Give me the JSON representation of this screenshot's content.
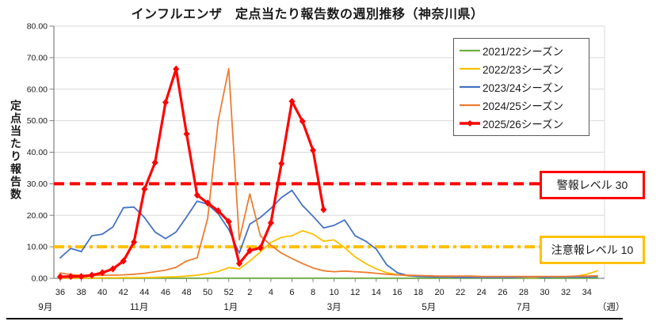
{
  "title": "インフルエンザ　定点当たり報告数の週別推移（神奈川県）",
  "y_axis": {
    "title": "定点当たり報告数",
    "tick_labels": [
      "0.00",
      "10.00",
      "20.00",
      "30.00",
      "40.00",
      "50.00",
      "60.00",
      "70.00",
      "80.00"
    ],
    "min": 0,
    "max": 80,
    "step": 10
  },
  "x_axis": {
    "tick_labels": [
      "36",
      "38",
      "40",
      "42",
      "44",
      "46",
      "48",
      "50",
      "52",
      "2",
      "4",
      "6",
      "8",
      "10",
      "12",
      "14",
      "16",
      "18",
      "20",
      "22",
      "24",
      "26",
      "28",
      "30",
      "32",
      "34"
    ],
    "month_labels": [
      {
        "text": "9月",
        "pos": -1.4
      },
      {
        "text": "11月",
        "pos": 7.5
      },
      {
        "text": "1月",
        "pos": 16.2
      },
      {
        "text": "3月",
        "pos": 26.0
      },
      {
        "text": "5月",
        "pos": 35.0
      },
      {
        "text": "7月",
        "pos": 44.0
      }
    ],
    "unit_label": {
      "text": "（週）",
      "pos": 52.3
    }
  },
  "thresholds": {
    "warning": {
      "label": "警報レベル 30",
      "value": 30,
      "color": "#FF0000"
    },
    "caution": {
      "label": "注意報レベル 10",
      "value": 10,
      "color": "#FFC000"
    }
  },
  "chart_data": {
    "type": "line",
    "title": "インフルエンザ　定点当たり報告数の週別推移（神奈川県）",
    "ylabel": "定点当たり報告数",
    "xlabel": "（週）",
    "ylim": [
      0,
      80
    ],
    "grid": "horizontal",
    "legend_position": "upper-right",
    "x_weeks": [
      "36",
      "37",
      "38",
      "39",
      "40",
      "41",
      "42",
      "43",
      "44",
      "45",
      "46",
      "47",
      "48",
      "49",
      "50",
      "51",
      "52",
      "1",
      "2",
      "3",
      "4",
      "5",
      "6",
      "7",
      "8",
      "9",
      "10",
      "11",
      "12",
      "13",
      "14",
      "15",
      "16",
      "17",
      "18",
      "19",
      "20",
      "21",
      "22",
      "23",
      "24",
      "25",
      "26",
      "27",
      "28",
      "29",
      "30",
      "31",
      "32",
      "33",
      "34",
      "35"
    ],
    "series": [
      {
        "id": "season-2021-22",
        "name": "2021/22シーズン",
        "color": "#70AD47",
        "marker": "none",
        "values": [
          0.05,
          0.05,
          0.05,
          0.05,
          0.05,
          0.05,
          0.05,
          0.05,
          0.05,
          0.05,
          0.05,
          0.05,
          0.05,
          0.05,
          0.05,
          0.05,
          0.05,
          0.05,
          0.05,
          0.05,
          0.05,
          0.05,
          0.05,
          0.05,
          0.05,
          0.05,
          0.05,
          0.05,
          0.05,
          0.05,
          0.05,
          0.05,
          0.05,
          0.05,
          0.05,
          0.05,
          0.05,
          0.05,
          0.05,
          0.05,
          0.05,
          0.05,
          0.05,
          0.05,
          0.05,
          0.05,
          0.05,
          0.05,
          0.05,
          0.05,
          0.05,
          0.05
        ]
      },
      {
        "id": "season-2022-23",
        "name": "2022/23シーズン",
        "color": "#FFC000",
        "marker": "none",
        "values": [
          0.1,
          0.1,
          0.1,
          0.1,
          0.15,
          0.15,
          0.2,
          0.2,
          0.25,
          0.3,
          0.4,
          0.5,
          0.7,
          1.0,
          1.5,
          2.2,
          3.4,
          3.0,
          5.5,
          8.4,
          11.4,
          13.0,
          13.5,
          15.1,
          14.0,
          11.8,
          12.2,
          9.7,
          6.8,
          4.7,
          3.0,
          1.8,
          1.2,
          0.8,
          0.6,
          0.5,
          0.4,
          0.4,
          0.3,
          0.3,
          0.3,
          0.3,
          0.3,
          0.3,
          0.3,
          0.3,
          0.4,
          0.4,
          0.5,
          0.7,
          1.3,
          2.4
        ]
      },
      {
        "id": "season-2023-24",
        "name": "2023/24シーズン",
        "color": "#4472C4",
        "marker": "none",
        "values": [
          6.5,
          9.5,
          8.5,
          13.5,
          14.0,
          16.3,
          22.4,
          22.6,
          19.3,
          14.7,
          12.6,
          14.7,
          19.5,
          24.5,
          23.5,
          20.5,
          15.5,
          8.0,
          17.2,
          19.3,
          22.2,
          25.6,
          27.9,
          23.1,
          19.7,
          16.0,
          16.8,
          18.5,
          13.5,
          11.8,
          9.3,
          4.3,
          1.8,
          0.9,
          0.6,
          0.5,
          0.4,
          0.4,
          0.3,
          0.3,
          0.3,
          0.3,
          0.3,
          0.3,
          0.4,
          0.5,
          0.3,
          0.4,
          0.4,
          0.4,
          0.4,
          0.5
        ]
      },
      {
        "id": "season-2024-25",
        "name": "2024/25シーズン",
        "color": "#ED7D31",
        "marker": "none",
        "values": [
          1.7,
          1.2,
          1.0,
          0.9,
          1.0,
          1.0,
          1.1,
          1.3,
          1.6,
          2.1,
          2.6,
          3.5,
          5.5,
          6.5,
          19.0,
          50.0,
          66.5,
          12.2,
          26.8,
          13.5,
          10.5,
          8.0,
          6.3,
          4.7,
          3.3,
          2.4,
          2.1,
          2.3,
          2.1,
          1.9,
          1.6,
          1.3,
          1.1,
          1.0,
          0.9,
          0.8,
          0.7,
          0.7,
          0.7,
          0.7,
          0.6,
          0.6,
          0.6,
          0.6,
          0.6,
          0.6,
          0.6,
          0.6,
          0.6,
          0.7,
          0.7,
          0.8
        ]
      },
      {
        "id": "season-2025-26",
        "name": "2025/26シーズン",
        "color": "#FF0000",
        "marker": "diamond",
        "values": [
          0.5,
          0.6,
          0.6,
          1.0,
          1.8,
          3.0,
          5.5,
          11.5,
          28.3,
          36.7,
          55.8,
          66.4,
          45.8,
          26.4,
          23.9,
          21.4,
          18.0,
          4.7,
          8.8,
          9.7,
          17.6,
          36.4,
          56.1,
          49.8,
          40.6,
          21.8
        ]
      }
    ]
  }
}
